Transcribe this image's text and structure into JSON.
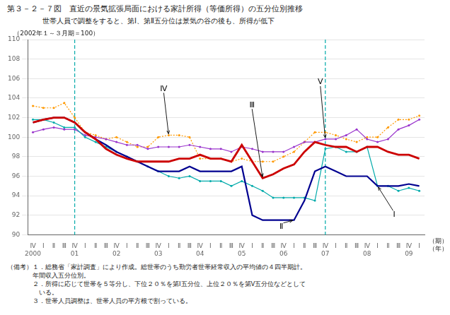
{
  "chart_data": {
    "type": "line",
    "title": "第３－２－７図　直近の景気拡張局面における家計所得（等価所得）の五分位別推移",
    "subtitle": "世帯人員で調整をすると、第Ⅰ、第Ⅱ五分位は景気の谷の後も、所得が低下",
    "ylabel": "（2002年１～３月期＝100）",
    "xlabel": "（期）",
    "xlabel2": "（年）",
    "categories": [
      "Ⅳ",
      "Ⅰ",
      "Ⅱ",
      "Ⅲ",
      "Ⅳ",
      "Ⅰ",
      "Ⅱ",
      "Ⅲ",
      "Ⅳ",
      "Ⅰ",
      "Ⅱ",
      "Ⅲ",
      "Ⅳ",
      "Ⅰ",
      "Ⅱ",
      "Ⅲ",
      "Ⅳ",
      "Ⅰ",
      "Ⅱ",
      "Ⅲ",
      "Ⅳ",
      "Ⅰ",
      "Ⅱ",
      "Ⅲ",
      "Ⅳ",
      "Ⅰ",
      "Ⅱ",
      "Ⅲ",
      "Ⅳ",
      "Ⅰ",
      "Ⅱ",
      "Ⅲ",
      "Ⅳ",
      "Ⅰ",
      "Ⅱ",
      "Ⅲ",
      "Ⅳ",
      "Ⅰ"
    ],
    "year_labels": [
      "2000",
      null,
      null,
      null,
      "01",
      null,
      null,
      null,
      "02",
      null,
      null,
      null,
      "03",
      null,
      null,
      null,
      "04",
      null,
      null,
      null,
      "05",
      null,
      null,
      null,
      "06",
      null,
      null,
      null,
      "07",
      null,
      null,
      null,
      "08",
      null,
      null,
      null,
      "09",
      null
    ],
    "series": [
      {
        "name": "Ⅳ",
        "color": "#ff9900",
        "line_style": "dotted",
        "marker": "point",
        "values": [
          103.2,
          103.0,
          103.0,
          103.5,
          102.0,
          100.5,
          100.2,
          99.8,
          100.0,
          99.5,
          99.0,
          99.0,
          100.0,
          100.2,
          100.2,
          100.0,
          97.8,
          97.8,
          97.8,
          97.5,
          97.8,
          97.5,
          97.5,
          97.5,
          98.0,
          98.5,
          99.5,
          100.5,
          100.5,
          100.2,
          99.8,
          99.5,
          100.0,
          100.0,
          101.0,
          101.8,
          101.8,
          102.2
        ]
      },
      {
        "name": "V",
        "color": "#9933cc",
        "line_style": "solid",
        "marker": "point",
        "values": [
          100.5,
          100.8,
          101.0,
          100.8,
          100.8,
          100.2,
          100.0,
          99.8,
          99.5,
          99.2,
          99.2,
          98.8,
          99.0,
          99.0,
          99.0,
          99.2,
          99.0,
          98.8,
          98.8,
          98.5,
          99.0,
          98.8,
          98.5,
          98.5,
          98.5,
          99.0,
          99.5,
          99.5,
          99.8,
          99.8,
          100.2,
          100.8,
          99.8,
          99.5,
          99.8,
          100.8,
          101.2,
          101.8
        ]
      },
      {
        "name": "Ⅰ",
        "color": "#00aaaa",
        "line_style": "solid",
        "marker": "point",
        "values": [
          101.8,
          101.8,
          101.5,
          101.0,
          101.0,
          100.0,
          99.5,
          99.0,
          98.5,
          98.0,
          97.5,
          97.0,
          96.5,
          96.0,
          95.8,
          96.0,
          95.5,
          95.5,
          95.5,
          95.0,
          95.5,
          95.0,
          94.5,
          93.8,
          93.8,
          93.8,
          93.8,
          93.5,
          98.8,
          99.0,
          98.5,
          98.5,
          99.0,
          95.0,
          95.0,
          94.5,
          94.8,
          94.5
        ]
      },
      {
        "name": "Ⅱ",
        "color": "#000090",
        "line_style": "solid",
        "values": [
          101.5,
          101.8,
          102.0,
          102.0,
          101.5,
          100.5,
          99.8,
          99.2,
          98.5,
          98.0,
          97.5,
          97.0,
          96.5,
          96.5,
          96.5,
          97.0,
          96.5,
          96.5,
          96.5,
          96.5,
          97.0,
          92.0,
          91.5,
          91.5,
          91.5,
          91.5,
          93.5,
          96.5,
          97.0,
          96.5,
          96.0,
          96.0,
          96.0,
          95.0,
          95.0,
          95.0,
          95.2,
          95.0
        ]
      },
      {
        "name": "Ⅲ",
        "color": "#cc0000",
        "line_style": "solid",
        "values": [
          101.5,
          101.8,
          102.0,
          102.0,
          101.5,
          100.5,
          99.8,
          98.8,
          98.2,
          97.8,
          97.5,
          97.5,
          97.5,
          97.5,
          97.8,
          97.8,
          98.2,
          97.8,
          97.8,
          97.5,
          99.2,
          97.5,
          95.8,
          96.2,
          96.8,
          97.2,
          98.5,
          99.5,
          99.2,
          99.0,
          99.0,
          98.5,
          99.0,
          99.0,
          98.5,
          98.2,
          98.2,
          97.8
        ]
      }
    ],
    "annotations": [
      {
        "text": "Ⅳ",
        "index": 13
      },
      {
        "text": "Ⅲ",
        "index": 22
      },
      {
        "text": "V",
        "index": 28
      },
      {
        "text": "Ⅱ",
        "index": 25
      },
      {
        "text": "Ⅰ",
        "index": 33
      }
    ],
    "vlines": [
      {
        "index": 4,
        "color": "#00aaaa",
        "line_style": "dashed"
      },
      {
        "index": 28,
        "color": "#00aaaa",
        "line_style": "dashed"
      }
    ],
    "ylim": [
      90,
      110
    ],
    "yticks": [
      90,
      92,
      94,
      96,
      98,
      100,
      102,
      104,
      106,
      108,
      110
    ],
    "grid": "y",
    "notes": [
      "（備考）１．総務省「家計調査」により作成。総世帯のうち勤労者世帯経常収入の平均値の４四半期計。",
      "　　　　年間収入五分位別。",
      "　　　　２．所得に応じて世帯を５等分し、下位２０％を第Ⅰ五分位、上位２０％を第Ⅴ五分位などとして",
      "　　　　　いる。",
      "　　　　３．世帯人員調整は、世帯人員の平方根で割っている。"
    ]
  }
}
